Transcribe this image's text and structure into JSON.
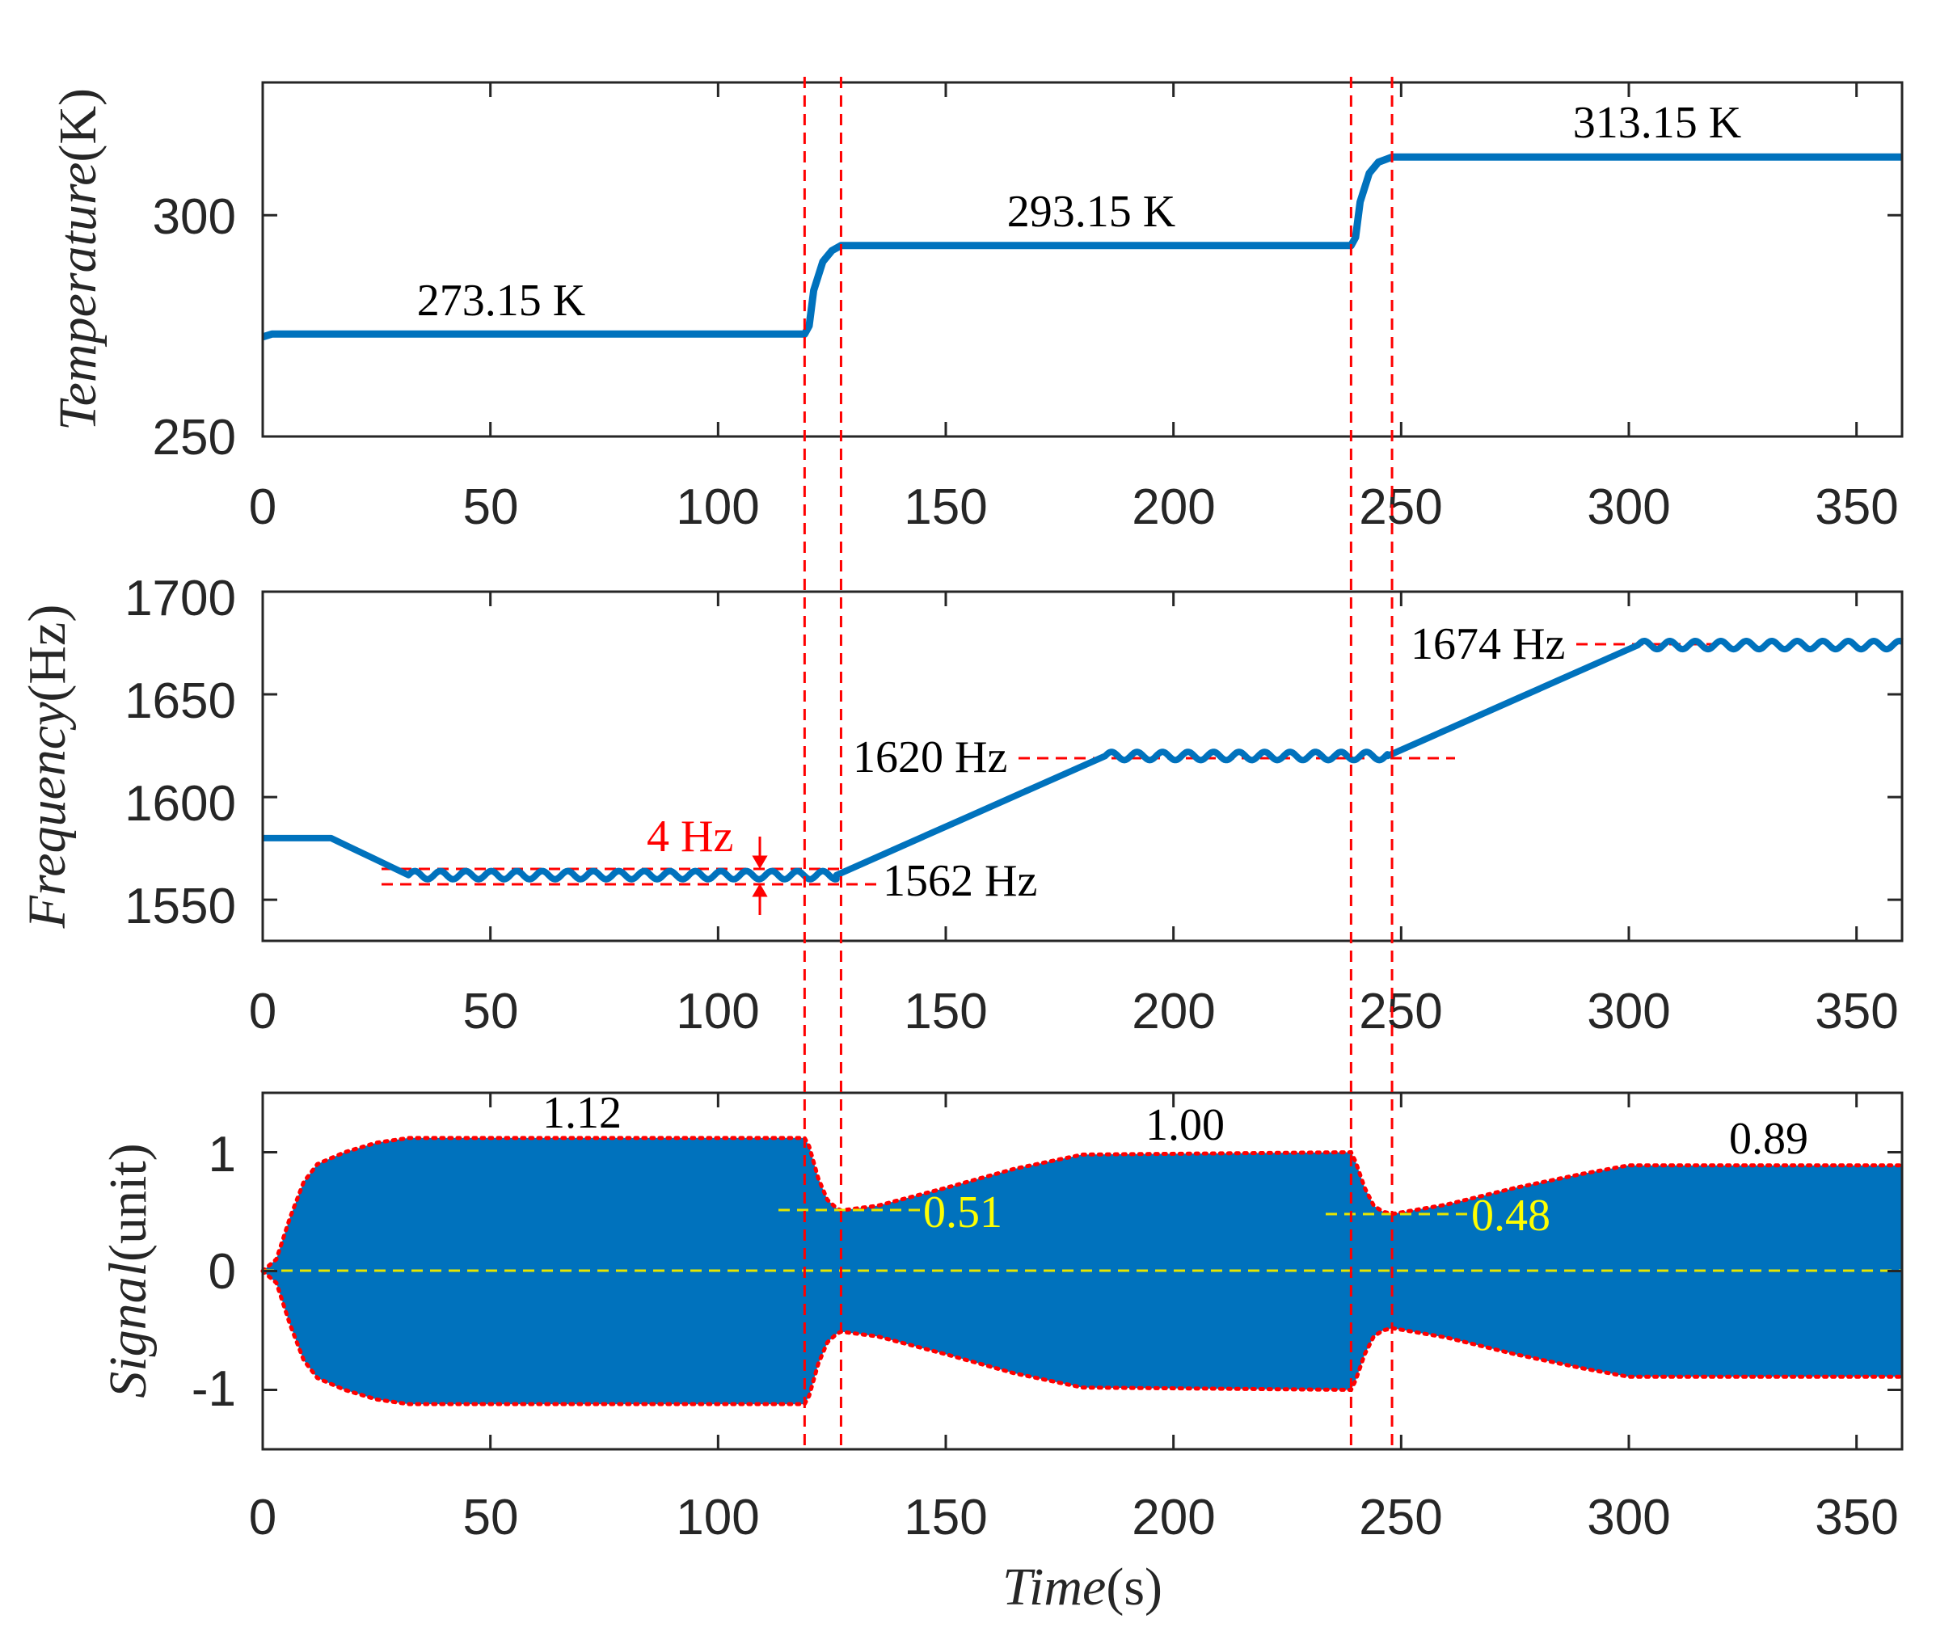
{
  "colors": {
    "series": "#0072bd",
    "guide": "#ff0000",
    "zero_line": "#e6e600",
    "annotation_yellow": "#ffff00",
    "axis": "#262626",
    "annotation_red": "#ff0000"
  },
  "panels": {
    "temperature": {
      "ylabel_var": "Temperature",
      "ylabel_unit": "(K)",
      "x_ticks": [
        "0",
        "50",
        "100",
        "150",
        "200",
        "250",
        "300",
        "350"
      ],
      "y_ticks": [
        "250",
        "300"
      ],
      "annotations": [
        "273.15 K",
        "293.15 K",
        "313.15 K"
      ]
    },
    "frequency": {
      "ylabel_var": "Frequency",
      "ylabel_unit": "(Hz)",
      "x_ticks": [
        "0",
        "50",
        "100",
        "150",
        "200",
        "250",
        "300",
        "350"
      ],
      "y_ticks": [
        "1550",
        "1600",
        "1650",
        "1700"
      ],
      "annotations": [
        "1562 Hz",
        "1620 Hz",
        "1674 Hz",
        "4 Hz"
      ]
    },
    "signal": {
      "ylabel_var": "Signal",
      "ylabel_unit": "(unit)",
      "x_ticks": [
        "0",
        "50",
        "100",
        "150",
        "200",
        "250",
        "300",
        "350"
      ],
      "y_ticks": [
        "-1",
        "0",
        "1"
      ],
      "annotations": [
        "1.12",
        "1.00",
        "0.89",
        "0.51",
        "0.48"
      ],
      "xlabel_var": "Time",
      "xlabel_unit": "(s)"
    }
  },
  "chart_data": [
    {
      "type": "line",
      "panel": "temperature",
      "xlabel": "",
      "ylabel": "Temperature(K)",
      "xlim": [
        0,
        360
      ],
      "ylim": [
        250,
        330
      ],
      "grid": false,
      "x": [
        0,
        2,
        119,
        120,
        121,
        123,
        125,
        127,
        239,
        240,
        241,
        243,
        245,
        248,
        360
      ],
      "series": [
        {
          "values": [
            272.5,
            273.15,
            273.15,
            275.0,
            283.0,
            289.5,
            292.0,
            293.15,
            293.15,
            295.0,
            303.0,
            309.5,
            312.0,
            313.15,
            313.15
          ]
        }
      ],
      "guide_lines_x": [
        119,
        127,
        239,
        248
      ]
    },
    {
      "type": "line",
      "panel": "frequency",
      "xlabel": "",
      "ylabel": "Frequency(Hz)",
      "xlim": [
        0,
        360
      ],
      "ylim": [
        1530,
        1700
      ],
      "grid": false,
      "x": [
        0,
        15,
        32,
        126,
        185,
        247,
        302,
        360
      ],
      "series": [
        {
          "values": [
            1580,
            1580,
            1562,
            1562,
            1620,
            1620,
            1674,
            1674
          ]
        }
      ],
      "ripple_amplitude_hz": 2,
      "guide_lines_x": [
        119,
        127,
        239,
        248
      ],
      "reference_levels": [
        1562,
        1620,
        1674
      ]
    },
    {
      "type": "area",
      "panel": "signal",
      "xlabel": "Time(s)",
      "ylabel": "Signal(unit)",
      "xlim": [
        0,
        360
      ],
      "ylim": [
        -1.5,
        1.5
      ],
      "grid": false,
      "x": [
        0,
        3,
        6,
        9,
        12,
        18,
        25,
        32,
        119,
        120,
        122,
        124,
        126,
        127,
        135,
        150,
        165,
        180,
        239,
        240,
        242,
        244,
        246,
        248,
        260,
        275,
        290,
        300,
        360
      ],
      "series": [
        {
          "name": "upper envelope",
          "values": [
            0,
            0.1,
            0.45,
            0.75,
            0.9,
            1.0,
            1.08,
            1.12,
            1.12,
            1.05,
            0.78,
            0.6,
            0.53,
            0.51,
            0.55,
            0.7,
            0.86,
            0.98,
            1.0,
            0.92,
            0.7,
            0.55,
            0.5,
            0.48,
            0.56,
            0.7,
            0.82,
            0.89,
            0.89
          ]
        },
        {
          "name": "lower envelope",
          "values": [
            0,
            -0.1,
            -0.45,
            -0.75,
            -0.9,
            -1.0,
            -1.08,
            -1.12,
            -1.12,
            -1.05,
            -0.78,
            -0.6,
            -0.53,
            -0.51,
            -0.55,
            -0.7,
            -0.86,
            -0.98,
            -1.0,
            -0.92,
            -0.7,
            -0.55,
            -0.5,
            -0.48,
            -0.56,
            -0.7,
            -0.82,
            -0.89,
            -0.89
          ]
        }
      ],
      "guide_lines_x": [
        119,
        127,
        239,
        248
      ],
      "zero_line": 0
    }
  ]
}
